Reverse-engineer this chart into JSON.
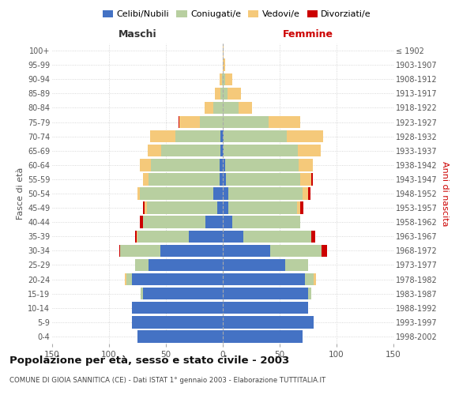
{
  "age_groups": [
    "0-4",
    "5-9",
    "10-14",
    "15-19",
    "20-24",
    "25-29",
    "30-34",
    "35-39",
    "40-44",
    "45-49",
    "50-54",
    "55-59",
    "60-64",
    "65-69",
    "70-74",
    "75-79",
    "80-84",
    "85-89",
    "90-94",
    "95-99",
    "100+"
  ],
  "birth_years": [
    "1998-2002",
    "1993-1997",
    "1988-1992",
    "1983-1987",
    "1978-1982",
    "1973-1977",
    "1968-1972",
    "1963-1967",
    "1958-1962",
    "1953-1957",
    "1948-1952",
    "1943-1947",
    "1938-1942",
    "1933-1937",
    "1928-1932",
    "1923-1927",
    "1918-1922",
    "1913-1917",
    "1908-1912",
    "1903-1907",
    "≤ 1902"
  ],
  "male_celibi": [
    75,
    80,
    80,
    70,
    80,
    65,
    55,
    30,
    15,
    5,
    8,
    3,
    3,
    2,
    2,
    0,
    0,
    0,
    0,
    0,
    0
  ],
  "male_coniugati": [
    0,
    0,
    0,
    2,
    5,
    12,
    35,
    45,
    55,
    62,
    65,
    62,
    60,
    52,
    40,
    20,
    8,
    2,
    1,
    0,
    0
  ],
  "male_vedovi": [
    0,
    0,
    0,
    0,
    1,
    0,
    0,
    1,
    0,
    2,
    2,
    5,
    10,
    12,
    22,
    18,
    8,
    5,
    2,
    0,
    0
  ],
  "male_divorziati": [
    0,
    0,
    0,
    0,
    0,
    0,
    1,
    1,
    3,
    1,
    0,
    0,
    0,
    0,
    0,
    1,
    0,
    0,
    0,
    0,
    0
  ],
  "female_celibi": [
    70,
    80,
    75,
    75,
    72,
    55,
    42,
    18,
    8,
    5,
    5,
    3,
    2,
    1,
    1,
    0,
    0,
    0,
    0,
    0,
    0
  ],
  "female_coniugati": [
    0,
    0,
    0,
    3,
    8,
    20,
    45,
    60,
    60,
    60,
    65,
    65,
    65,
    65,
    55,
    40,
    14,
    4,
    2,
    0,
    0
  ],
  "female_vedovi": [
    0,
    0,
    0,
    0,
    2,
    0,
    0,
    0,
    0,
    3,
    5,
    10,
    12,
    20,
    32,
    28,
    12,
    12,
    6,
    2,
    1
  ],
  "female_divorziati": [
    0,
    0,
    0,
    0,
    0,
    0,
    5,
    3,
    0,
    3,
    2,
    1,
    0,
    0,
    0,
    0,
    0,
    0,
    0,
    0,
    0
  ],
  "colors": {
    "celibi": "#4472c4",
    "coniugati": "#b8cfa0",
    "vedovi": "#f5c97a",
    "divorziati": "#cc0000"
  },
  "title": "Popolazione per età, sesso e stato civile - 2003",
  "subtitle": "COMUNE DI GIOIA SANNITICA (CE) - Dati ISTAT 1° gennaio 2003 - Elaborazione TUTTITALIA.IT",
  "xlabel_left": "Maschi",
  "xlabel_right": "Femmine",
  "ylabel_left": "Fasce di età",
  "ylabel_right": "Anni di nascita",
  "xlim": 150
}
